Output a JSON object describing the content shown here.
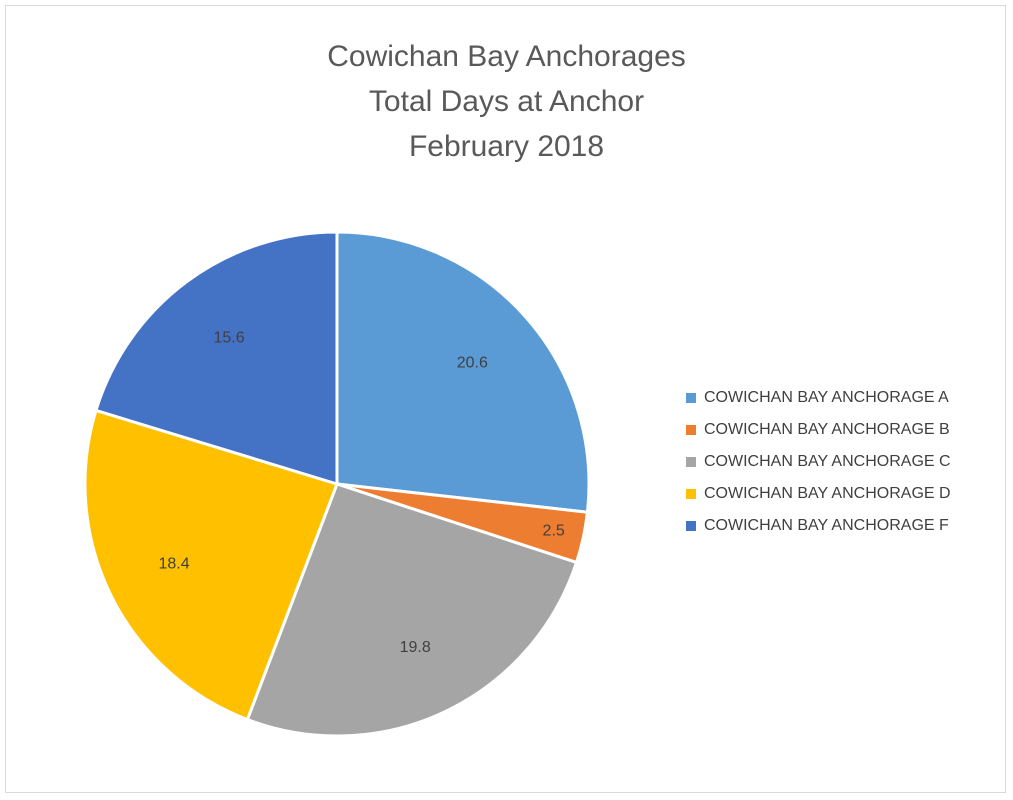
{
  "chart_data": {
    "type": "pie",
    "title": "Cowichan Bay Anchorages Total Days at Anchor February 2018",
    "title_lines": [
      "Cowichan Bay Anchorages",
      "Total Days at Anchor",
      "February 2018"
    ],
    "categories": [
      "COWICHAN BAY ANCHORAGE A",
      "COWICHAN BAY ANCHORAGE B",
      "COWICHAN BAY ANCHORAGE C",
      "COWICHAN BAY ANCHORAGE D",
      "COWICHAN BAY ANCHORAGE F"
    ],
    "values": [
      20.6,
      2.5,
      19.8,
      18.4,
      15.6
    ],
    "data_labels": [
      "20.6",
      "2.5",
      "19.8",
      "18.4",
      "15.6"
    ],
    "colors": [
      "#5b9bd5",
      "#ed7d31",
      "#a5a5a5",
      "#ffc000",
      "#4472c4"
    ],
    "start_angle": "12 o'clock",
    "direction": "clockwise",
    "legend_position": "right"
  }
}
